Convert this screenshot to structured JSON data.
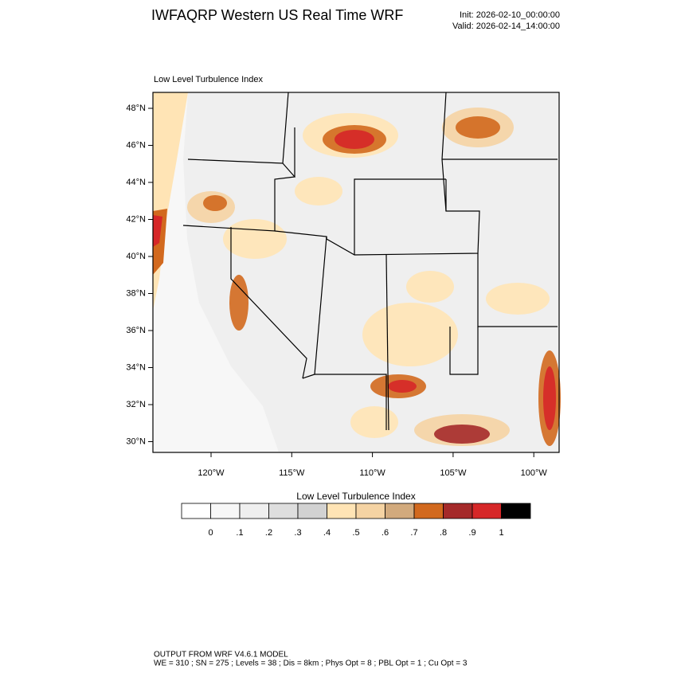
{
  "header": {
    "title": "IWFAQRP Western US Real Time WRF",
    "init": "Init: 2026-02-10_00:00:00",
    "valid": "Valid: 2026-02-14_14:00:00"
  },
  "map": {
    "label": "Low Level Turbulence Index",
    "lat_labels": [
      "48°N",
      "46°N",
      "44°N",
      "42°N",
      "40°N",
      "38°N",
      "36°N",
      "34°N",
      "32°N",
      "30°N"
    ],
    "lon_labels": [
      "120°W",
      "115°W",
      "110°W",
      "105°W",
      "100°W"
    ]
  },
  "colorbar": {
    "title": "Low Level Turbulence Index",
    "colors": [
      "#ffffff",
      "#f7f7f7",
      "#efefef",
      "#dedede",
      "#d2d2d2",
      "#ffe4b5",
      "#f5d3a3",
      "#d2aa7d",
      "#d2691e",
      "#a52a2a",
      "#d62728",
      "#000000"
    ],
    "labels": [
      "0",
      ".1",
      ".2",
      ".3",
      ".4",
      ".5",
      ".6",
      ".7",
      ".8",
      ".9",
      "1"
    ]
  },
  "footer": {
    "line1": "OUTPUT FROM WRF V4.6.1 MODEL",
    "line2": "WE = 310 ; SN = 275 ; Levels = 38 ; Dis = 8km ; Phys Opt = 8 ; PBL Opt = 1 ; Cu Opt = 3"
  }
}
